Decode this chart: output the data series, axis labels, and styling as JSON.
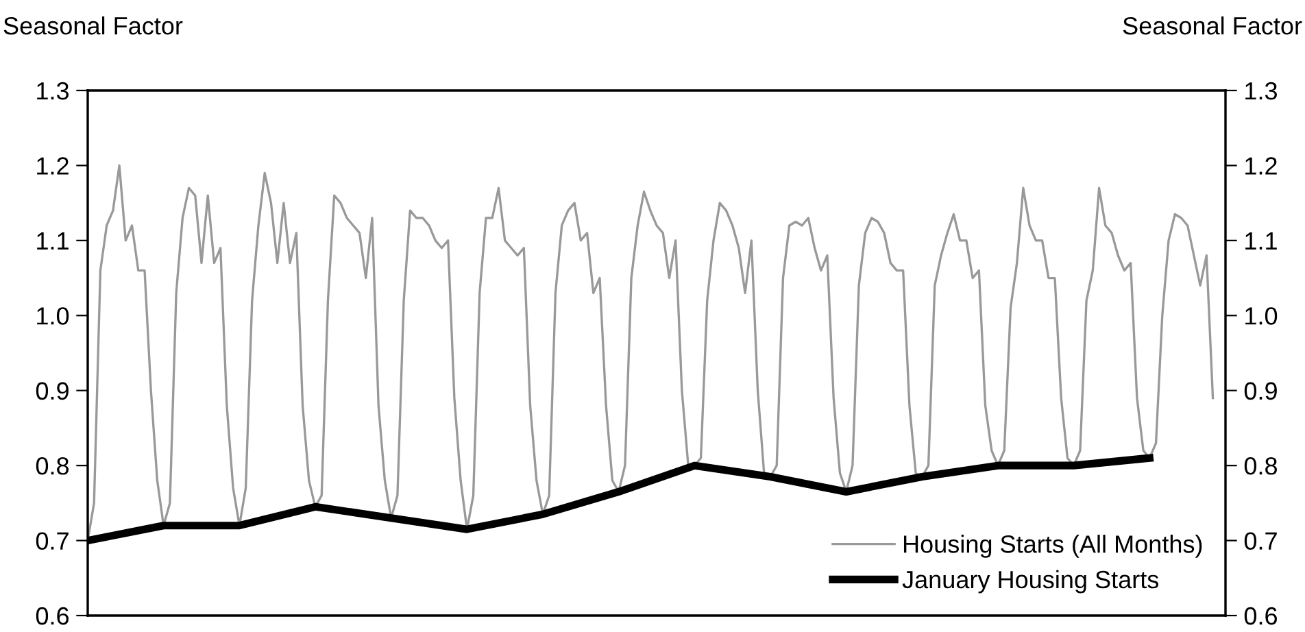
{
  "chart_data": {
    "type": "line",
    "ylabel": "Seasonal Factor",
    "y2label": "Seasonal Factor",
    "categories": [
      null,
      null,
      null,
      null,
      null,
      null,
      null,
      null,
      null,
      null,
      null,
      null,
      null,
      null,
      null,
      null,
      null,
      null,
      null,
      null,
      null,
      null,
      null,
      null,
      null,
      null,
      null,
      null,
      null,
      null,
      null,
      null,
      null,
      null,
      null,
      null,
      null,
      null,
      null,
      null,
      null,
      null,
      null,
      null,
      null,
      null,
      null,
      null,
      null,
      null,
      null,
      null,
      null,
      null,
      null,
      null,
      null,
      null,
      null,
      null,
      null,
      null,
      null,
      null,
      null,
      null,
      null,
      null,
      null,
      null,
      null,
      null,
      null,
      null,
      null,
      null,
      null,
      null,
      null,
      null,
      null,
      null,
      null,
      null,
      null,
      null,
      null,
      null,
      null,
      null,
      null,
      null,
      null,
      null,
      null,
      null,
      null,
      null,
      null,
      null,
      null,
      null,
      null,
      null,
      null,
      null,
      null,
      null,
      null,
      null,
      null,
      null,
      null,
      null,
      null,
      null,
      null,
      null,
      null,
      null,
      null,
      null,
      null,
      null,
      null,
      null,
      null,
      null,
      null,
      null,
      null,
      null,
      null,
      null,
      null,
      null,
      null,
      null,
      null,
      null,
      null,
      null,
      null,
      null,
      null,
      null,
      null,
      null,
      null,
      null,
      null,
      null,
      null,
      null,
      null,
      null,
      null,
      null,
      null,
      null,
      null,
      null,
      null,
      null,
      null,
      null,
      null,
      null,
      null,
      null,
      null,
      null,
      null,
      null,
      null,
      null,
      null,
      null,
      null
    ],
    "ylim": [
      0.6,
      1.3
    ],
    "yticks": [
      {
        "value": 0.6,
        "label": "0.6"
      },
      {
        "value": 0.7,
        "label": "0.7"
      },
      {
        "value": 0.8,
        "label": "0.8"
      },
      {
        "value": 0.9,
        "label": "0.9"
      },
      {
        "value": 1.0,
        "label": "1.0"
      },
      {
        "value": 1.1,
        "label": "1.1"
      },
      {
        "value": 1.2,
        "label": "1.2"
      },
      {
        "value": 1.3,
        "label": "1.3"
      }
    ],
    "y2lim": [
      0.6,
      1.3
    ],
    "y2ticks": [
      {
        "value": 0.6,
        "label": "0.6"
      },
      {
        "value": 0.7,
        "label": "0.7"
      },
      {
        "value": 0.8,
        "label": "0.8"
      },
      {
        "value": 0.9,
        "label": "0.9"
      },
      {
        "value": 1.0,
        "label": "1.0"
      },
      {
        "value": 1.1,
        "label": "1.1"
      },
      {
        "value": 1.2,
        "label": "1.2"
      },
      {
        "value": 1.3,
        "label": "1.3"
      }
    ],
    "grid": false,
    "legend": "bottom right",
    "marker": "none",
    "line_style": "solid",
    "series": [
      {
        "name": "Housing Starts (All Months)",
        "color": "#999999",
        "values": [
          0.7,
          0.75,
          1.06,
          1.12,
          1.14,
          1.2,
          1.1,
          1.12,
          1.06,
          1.06,
          0.9,
          0.78,
          0.72,
          0.75,
          1.03,
          1.13,
          1.17,
          1.16,
          1.07,
          1.16,
          1.07,
          1.09,
          0.88,
          0.77,
          0.72,
          0.77,
          1.02,
          1.12,
          1.19,
          1.15,
          1.07,
          1.15,
          1.07,
          1.11,
          0.88,
          0.78,
          0.745,
          0.76,
          1.02,
          1.16,
          1.15,
          1.13,
          1.12,
          1.11,
          1.05,
          1.13,
          0.88,
          0.78,
          0.73,
          0.76,
          1.02,
          1.14,
          1.13,
          1.13,
          1.12,
          1.1,
          1.09,
          1.1,
          0.89,
          0.78,
          0.715,
          0.76,
          1.03,
          1.13,
          1.13,
          1.17,
          1.1,
          1.09,
          1.08,
          1.09,
          0.88,
          0.78,
          0.735,
          0.76,
          1.03,
          1.12,
          1.14,
          1.15,
          1.1,
          1.11,
          1.03,
          1.05,
          0.88,
          0.78,
          0.765,
          0.8,
          1.05,
          1.12,
          1.165,
          1.14,
          1.12,
          1.11,
          1.05,
          1.1,
          0.9,
          0.8,
          0.8,
          0.81,
          1.02,
          1.1,
          1.15,
          1.14,
          1.12,
          1.09,
          1.03,
          1.1,
          0.9,
          0.79,
          0.785,
          0.8,
          1.05,
          1.12,
          1.125,
          1.12,
          1.13,
          1.09,
          1.06,
          1.08,
          0.89,
          0.79,
          0.765,
          0.8,
          1.04,
          1.11,
          1.13,
          1.125,
          1.11,
          1.07,
          1.06,
          1.06,
          0.88,
          0.79,
          0.785,
          0.8,
          1.04,
          1.08,
          1.11,
          1.135,
          1.1,
          1.1,
          1.05,
          1.06,
          0.88,
          0.82,
          0.8,
          0.82,
          1.01,
          1.07,
          1.17,
          1.12,
          1.1,
          1.1,
          1.05,
          1.05,
          0.89,
          0.81,
          0.8,
          0.82,
          1.02,
          1.06,
          1.17,
          1.12,
          1.11,
          1.08,
          1.06,
          1.07,
          0.89,
          0.82,
          0.81,
          0.83,
          1.0,
          1.1,
          1.135,
          1.13,
          1.12,
          1.08,
          1.04,
          1.08,
          0.89
        ]
      },
      {
        "name": "January Housing Starts",
        "color": "#000000",
        "values": [
          0.7,
          null,
          null,
          null,
          null,
          null,
          null,
          null,
          null,
          null,
          null,
          null,
          0.72,
          null,
          null,
          null,
          null,
          null,
          null,
          null,
          null,
          null,
          null,
          null,
          0.72,
          null,
          null,
          null,
          null,
          null,
          null,
          null,
          null,
          null,
          null,
          null,
          0.745,
          null,
          null,
          null,
          null,
          null,
          null,
          null,
          null,
          null,
          null,
          null,
          0.73,
          null,
          null,
          null,
          null,
          null,
          null,
          null,
          null,
          null,
          null,
          null,
          0.715,
          null,
          null,
          null,
          null,
          null,
          null,
          null,
          null,
          null,
          null,
          null,
          0.735,
          null,
          null,
          null,
          null,
          null,
          null,
          null,
          null,
          null,
          null,
          null,
          0.765,
          null,
          null,
          null,
          null,
          null,
          null,
          null,
          null,
          null,
          null,
          null,
          0.8,
          null,
          null,
          null,
          null,
          null,
          null,
          null,
          null,
          null,
          null,
          null,
          0.785,
          null,
          null,
          null,
          null,
          null,
          null,
          null,
          null,
          null,
          null,
          null,
          0.765,
          null,
          null,
          null,
          null,
          null,
          null,
          null,
          null,
          null,
          null,
          null,
          0.785,
          null,
          null,
          null,
          null,
          null,
          null,
          null,
          null,
          null,
          null,
          null,
          0.8,
          null,
          null,
          null,
          null,
          null,
          null,
          null,
          null,
          null,
          null,
          null,
          0.8,
          null,
          null,
          null,
          null,
          null,
          null,
          null,
          null,
          null,
          null,
          null,
          0.81,
          null,
          null,
          null,
          null,
          null,
          null,
          null,
          null,
          null,
          null
        ]
      }
    ]
  }
}
